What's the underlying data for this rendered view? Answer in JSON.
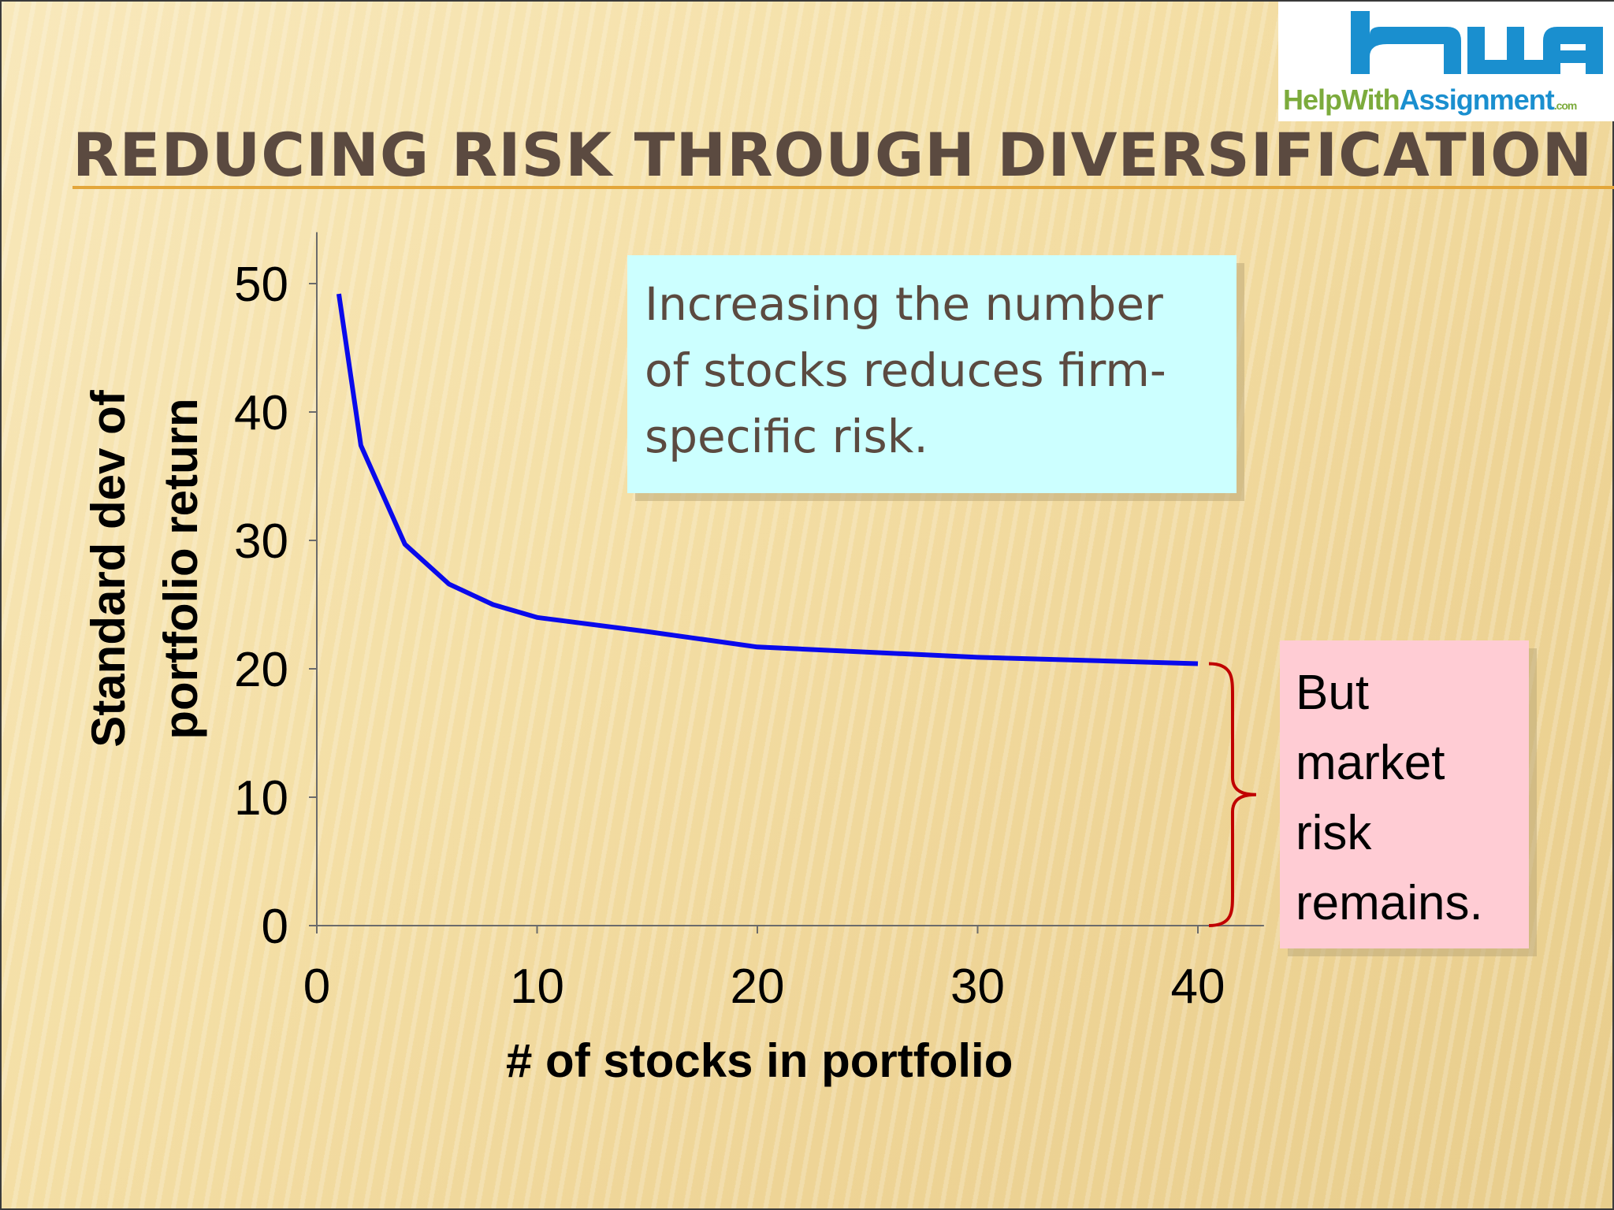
{
  "slide": {
    "title": "REDUCING RISK THROUGH DIVERSIFICATION",
    "logo": {
      "text_part1": "HelpWith",
      "text_part2": "Assignment",
      "suffix": ".com"
    },
    "callouts": {
      "firm_specific": "Increasing the number of stocks reduces firm-specific risk.",
      "market_risk": "But market risk remains."
    },
    "colors": {
      "line": "#0a0aeb",
      "brace": "#c00000",
      "callout_blue": "#ccffff",
      "callout_pink": "#ffccd4",
      "title": "#5b4a40",
      "title_rule": "#e3a63a"
    }
  },
  "chart_data": {
    "type": "line",
    "xlabel": "# of stocks in portfolio",
    "ylabel_lines": [
      "Standard dev of",
      "portfolio return"
    ],
    "xlim": [
      0,
      43
    ],
    "ylim": [
      0,
      54
    ],
    "xticks": [
      0,
      10,
      20,
      30,
      40
    ],
    "yticks": [
      0,
      10,
      20,
      30,
      40,
      50
    ],
    "grid": false,
    "series": [
      {
        "x": [
          1,
          2,
          4,
          6,
          8,
          10,
          15,
          20,
          30,
          40
        ],
        "y": [
          49.2,
          37.4,
          29.7,
          26.6,
          25.0,
          24.0,
          22.9,
          21.7,
          20.9,
          20.4
        ]
      }
    ],
    "annotations": [
      {
        "text": "Increasing the number of stocks reduces firm-specific risk."
      },
      {
        "text": "But market risk remains.",
        "brace_from": 0,
        "brace_to": 20.4,
        "brace_x": 40.5
      }
    ]
  }
}
